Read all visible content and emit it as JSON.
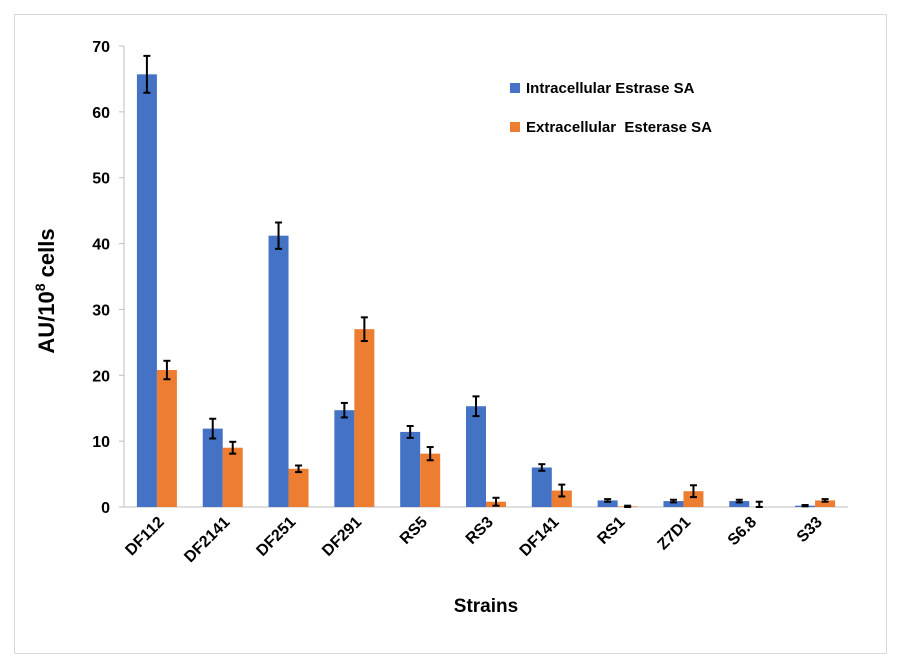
{
  "chart_data": {
    "type": "bar",
    "title": "",
    "xlabel": "Strains",
    "ylabel": {
      "prefix": "AU/10",
      "sup": "8",
      "suffix": " cells"
    },
    "ylim": [
      0,
      70
    ],
    "yticks": [
      0,
      10,
      20,
      30,
      40,
      50,
      60,
      70
    ],
    "grid": false,
    "legend_position": "top-right",
    "categories": [
      "DF112",
      "DF2141",
      "DF251",
      "DF291",
      "RS5",
      "RS3",
      "DF141",
      "RS1",
      "Z7D1",
      "S6.8",
      "S33"
    ],
    "series": [
      {
        "name": "Intracellular Estrase SA",
        "color": "#4472c4",
        "values": [
          65.7,
          11.9,
          41.2,
          14.7,
          11.4,
          15.3,
          6.0,
          1.0,
          0.9,
          0.9,
          0.2
        ],
        "errors": [
          2.8,
          1.5,
          2.0,
          1.1,
          0.9,
          1.5,
          0.5,
          0.2,
          0.2,
          0.2,
          0.1
        ]
      },
      {
        "name": "Extracellular  Esterase SA",
        "color": "#ed7d31",
        "values": [
          20.8,
          9.0,
          5.8,
          27.0,
          8.1,
          0.8,
          2.5,
          0.1,
          2.4,
          0.0,
          1.0
        ],
        "errors": [
          1.4,
          0.9,
          0.5,
          1.8,
          1.0,
          0.6,
          0.9,
          0.1,
          0.9,
          0.8,
          0.2
        ]
      }
    ]
  }
}
